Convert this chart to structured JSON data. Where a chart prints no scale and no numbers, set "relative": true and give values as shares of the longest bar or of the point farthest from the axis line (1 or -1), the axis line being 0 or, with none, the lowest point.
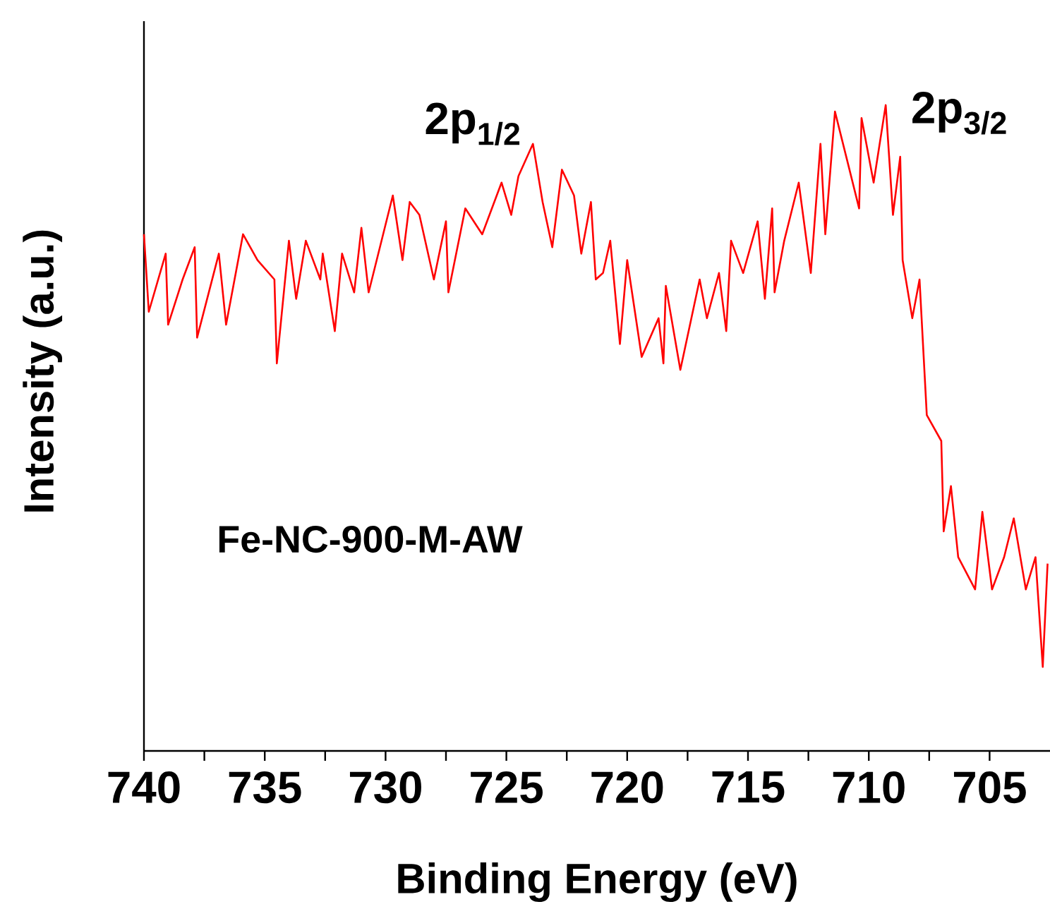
{
  "chart_data": {
    "type": "line",
    "xlabel": "Binding Energy (eV)",
    "ylabel": "Intensity (a.u.)",
    "relative": true,
    "xlim": [
      740,
      702.5
    ],
    "xticks": [
      740,
      {
        "value": 737.5,
        "label": null
      },
      735,
      {
        "value": 732.5,
        "label": null
      },
      730,
      {
        "value": 727.5,
        "label": null
      },
      725,
      {
        "value": 722.5,
        "label": null
      },
      720,
      {
        "value": 717.5,
        "label": null
      },
      715,
      {
        "value": 712.5,
        "label": null
      },
      710,
      {
        "value": 707.5,
        "label": null
      },
      705
    ],
    "annotations": [
      "2p$_{1/2}$",
      "2p$_{3/2}$",
      "Fe-NC-900-M-AW"
    ],
    "x": [
      740.0,
      739.8,
      739.1,
      739.0,
      738.4,
      737.9,
      737.8,
      736.9,
      736.6,
      735.9,
      735.3,
      734.6,
      734.5,
      734.0,
      733.7,
      733.3,
      732.7,
      732.6,
      732.1,
      731.8,
      731.3,
      731.0,
      730.7,
      729.7,
      729.3,
      729.0,
      728.6,
      728.0,
      727.5,
      727.4,
      726.7,
      726.0,
      725.2,
      724.8,
      724.5,
      723.9,
      723.5,
      723.1,
      722.7,
      722.2,
      721.9,
      721.5,
      721.3,
      721.0,
      720.7,
      720.3,
      720.0,
      719.4,
      718.7,
      718.5,
      718.4,
      717.8,
      717.0,
      716.7,
      716.2,
      715.9,
      715.7,
      715.2,
      714.6,
      714.3,
      714.0,
      713.9,
      713.5,
      712.9,
      712.4,
      712.0,
      711.8,
      711.4,
      710.8,
      710.4,
      710.3,
      709.8,
      709.3,
      709.0,
      708.7,
      708.6,
      708.2,
      707.9,
      707.6,
      707.0,
      706.9,
      706.6,
      706.3,
      705.6,
      705.3,
      704.9,
      704.4,
      704.0,
      703.5,
      703.1,
      702.8,
      702.6
    ],
    "series": [
      {
        "color": "#ff0000",
        "values": [
          0.8,
          0.68,
          0.77,
          0.66,
          0.73,
          0.78,
          0.64,
          0.77,
          0.66,
          0.8,
          0.76,
          0.73,
          0.6,
          0.79,
          0.7,
          0.79,
          0.73,
          0.77,
          0.65,
          0.77,
          0.71,
          0.81,
          0.71,
          0.86,
          0.76,
          0.85,
          0.83,
          0.73,
          0.82,
          0.71,
          0.84,
          0.8,
          0.88,
          0.83,
          0.89,
          0.94,
          0.85,
          0.78,
          0.9,
          0.86,
          0.77,
          0.85,
          0.73,
          0.74,
          0.79,
          0.63,
          0.76,
          0.61,
          0.67,
          0.6,
          0.72,
          0.59,
          0.73,
          0.67,
          0.74,
          0.65,
          0.79,
          0.74,
          0.82,
          0.7,
          0.84,
          0.71,
          0.79,
          0.88,
          0.74,
          0.94,
          0.8,
          0.99,
          0.9,
          0.84,
          0.98,
          0.88,
          1.0,
          0.83,
          0.92,
          0.76,
          0.67,
          0.73,
          0.52,
          0.48,
          0.34,
          0.41,
          0.3,
          0.25,
          0.37,
          0.25,
          0.3,
          0.36,
          0.25,
          0.3,
          0.13,
          0.29
        ]
      }
    ]
  }
}
